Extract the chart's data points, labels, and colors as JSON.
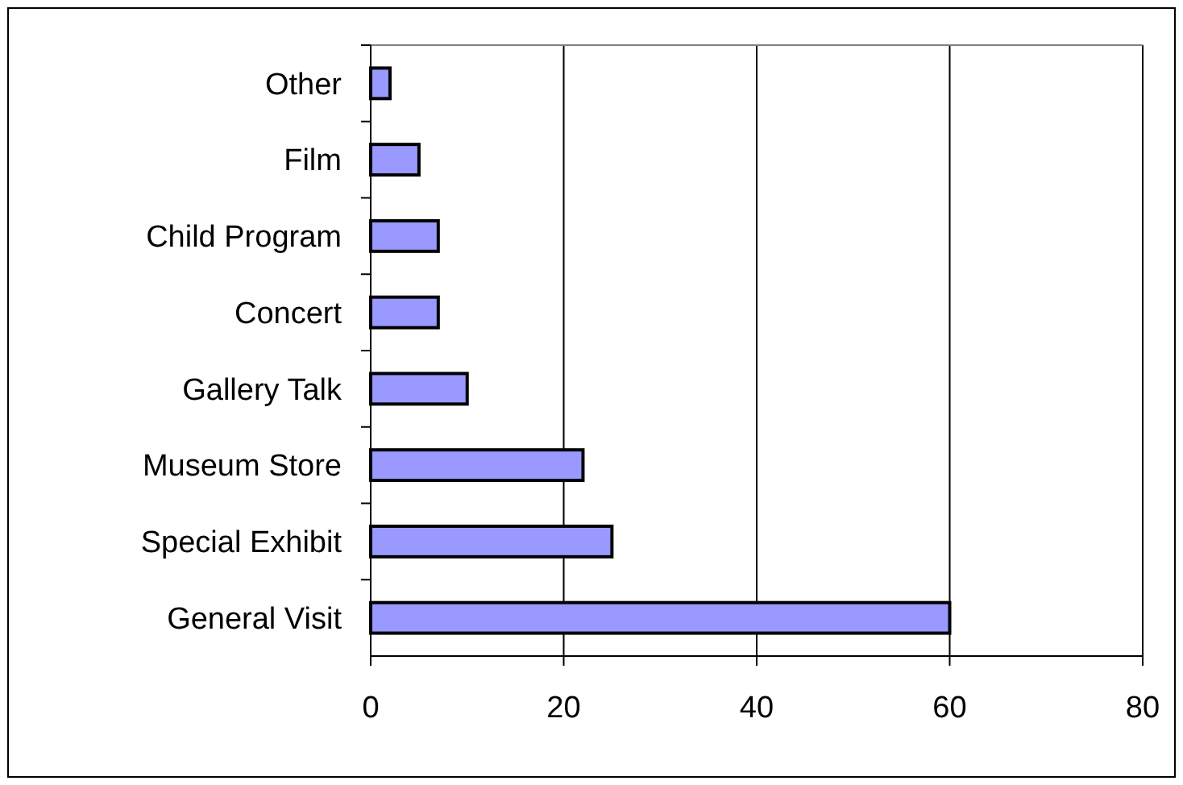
{
  "chart_data": {
    "type": "bar",
    "orientation": "horizontal",
    "categories": [
      "Other",
      "Film",
      "Child Program",
      "Concert",
      "Gallery Talk",
      "Museum Store",
      "Special Exhibit",
      "General Visit"
    ],
    "values": [
      2,
      5,
      7,
      7,
      10,
      22,
      25,
      60
    ],
    "color": "#9999ff",
    "xlim": [
      0,
      80
    ],
    "xticks": [
      0,
      20,
      40,
      60,
      80
    ],
    "grid": "x"
  }
}
